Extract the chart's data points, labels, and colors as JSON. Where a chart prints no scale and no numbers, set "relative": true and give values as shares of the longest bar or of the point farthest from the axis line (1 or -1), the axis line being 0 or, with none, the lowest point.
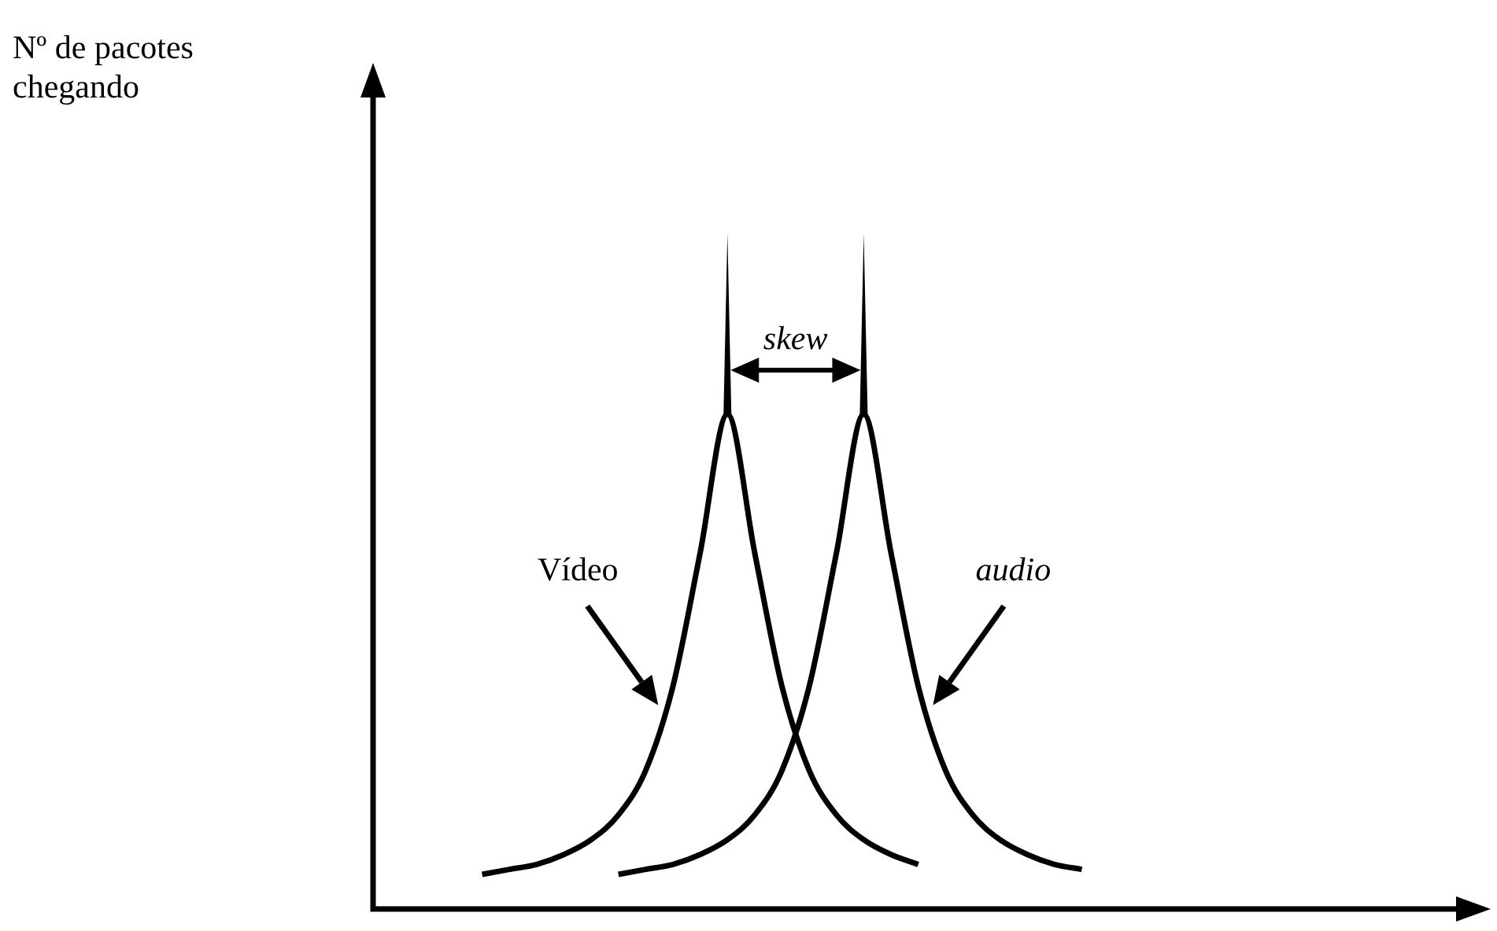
{
  "chart_data": {
    "type": "line",
    "relative": true,
    "annotations": [
      "Nº de pacotes chegando",
      "skew"
    ],
    "categories": [
      null,
      null,
      null,
      null,
      null,
      null,
      null,
      null,
      null,
      null,
      null,
      null,
      null,
      null,
      null,
      null,
      null,
      null,
      null,
      null,
      null,
      null,
      null,
      null,
      null,
      null,
      null,
      null,
      null,
      null,
      null,
      null,
      null,
      null,
      null,
      null,
      null,
      null,
      null,
      null,
      null,
      null
    ],
    "series": [
      {
        "name": "Vídeo",
        "color": "#000000",
        "values": [
          null,
          null,
          null,
          null,
          0.07,
          0.08,
          0.09,
          0.11,
          0.14,
          0.19,
          0.28,
          0.45,
          0.72,
          1,
          0.72,
          0.45,
          0.28,
          0.19,
          0.14,
          0.11,
          0.09,
          null,
          null,
          null,
          null,
          null,
          null,
          null,
          null,
          null,
          null,
          null,
          null,
          null,
          null,
          null,
          null,
          null,
          null,
          null,
          null,
          null
        ]
      },
      {
        "name": "audio",
        "color": "#000000",
        "values": [
          null,
          null,
          null,
          null,
          null,
          null,
          null,
          null,
          null,
          0.07,
          0.08,
          0.09,
          0.11,
          0.14,
          0.19,
          0.28,
          0.45,
          0.72,
          1,
          0.72,
          0.45,
          0.28,
          0.19,
          0.14,
          0.11,
          0.09,
          0.08,
          null,
          null,
          null,
          null,
          null,
          null,
          null,
          null,
          null,
          null,
          null,
          null,
          null,
          null,
          null
        ]
      }
    ]
  }
}
